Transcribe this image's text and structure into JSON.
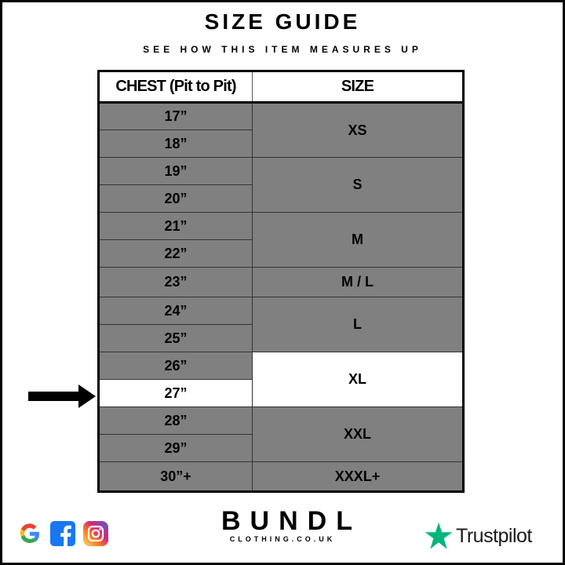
{
  "title": "SIZE GUIDE",
  "subtitle": "SEE HOW THIS ITEM MEASURES UP",
  "table": {
    "headers": [
      "CHEST (Pit to Pit)",
      "SIZE"
    ],
    "chest": [
      "17”",
      "18”",
      "19”",
      "20”",
      "21”",
      "22”",
      "23”",
      "24”",
      "25”",
      "26”",
      "27”",
      "28”",
      "29”",
      "30”+"
    ],
    "sizes": [
      "XS",
      "S",
      "M",
      "M / L",
      "L",
      "XL",
      "XXL",
      "XXXL+"
    ],
    "highlighted_chest": "27”",
    "highlighted_size": "XL"
  },
  "colors": {
    "cell": "#808080",
    "highlight": "#ffffff",
    "trustpilot_star": "#00b67a"
  },
  "footer": {
    "social_icons": [
      "google-icon",
      "facebook-icon",
      "instagram-icon"
    ],
    "brand": "BUNDL",
    "brand_sub": "CLOTHING.CO.UK",
    "trustpilot": "Trustpilot"
  }
}
